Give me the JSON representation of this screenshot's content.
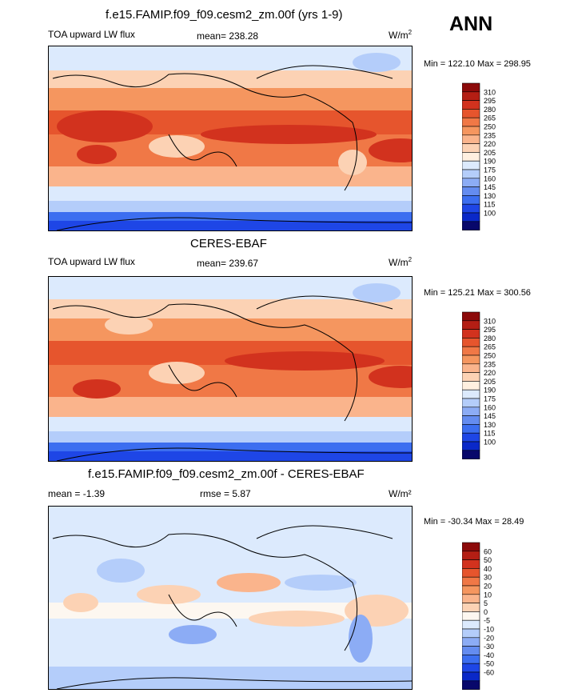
{
  "season": "ANN",
  "units_prefix": "W/m",
  "units_sup": "2",
  "diff_units": "W/m²",
  "colors": {
    "abs": [
      "#08086b",
      "#0a28c8",
      "#1e46e6",
      "#3c6ef0",
      "#648cf0",
      "#8cacf5",
      "#b4cdfa",
      "#dceafd",
      "#fff0e0",
      "#fcd2b4",
      "#fab48c",
      "#f5965f",
      "#f07846",
      "#e6552d",
      "#d2321e",
      "#b41e14",
      "#8c0a0a"
    ],
    "diff": [
      "#08086b",
      "#0a28c8",
      "#1e46e6",
      "#3c6ef0",
      "#648cf0",
      "#8cacf5",
      "#b4cdfa",
      "#dceafd",
      "#fdf7f0",
      "#fcd2b4",
      "#fab48c",
      "#f5965f",
      "#f07846",
      "#e6552d",
      "#d2321e",
      "#b41e14",
      "#8c0a0a"
    ]
  },
  "chart_data": [
    {
      "type": "heatmap",
      "title": "f.e15.FAMIP.f09_f09.cesm2_zm.00f (yrs 1-9)",
      "variable": "TOA upward LW flux",
      "mean_text": "mean= 238.28",
      "minmax_text": "Min = 122.10 Max = 298.95",
      "levels": [
        "310",
        "295",
        "280",
        "265",
        "250",
        "235",
        "220",
        "205",
        "190",
        "175",
        "160",
        "145",
        "130",
        "115",
        "100"
      ],
      "min": 122.1,
      "max": 298.95,
      "mean": 238.28
    },
    {
      "type": "heatmap",
      "title": "CERES-EBAF",
      "variable": "TOA upward LW flux",
      "mean_text": "mean= 239.67",
      "minmax_text": "Min = 125.21 Max = 300.56",
      "levels": [
        "310",
        "295",
        "280",
        "265",
        "250",
        "235",
        "220",
        "205",
        "190",
        "175",
        "160",
        "145",
        "130",
        "115",
        "100"
      ],
      "min": 125.21,
      "max": 300.56,
      "mean": 239.67
    },
    {
      "type": "heatmap",
      "title": "f.e15.FAMIP.f09_f09.cesm2_zm.00f - CERES-EBAF",
      "mean_text": "mean =  -1.39",
      "rmse_text": "rmse =   5.87",
      "minmax_text": "Min = -30.34 Max =  28.49",
      "levels": [
        "60",
        "50",
        "40",
        "30",
        "20",
        "10",
        "5",
        "0",
        "-5",
        "-10",
        "-20",
        "-30",
        "-40",
        "-50",
        "-60"
      ],
      "min": -30.34,
      "max": 28.49,
      "mean": -1.39,
      "rmse": 5.87
    }
  ]
}
